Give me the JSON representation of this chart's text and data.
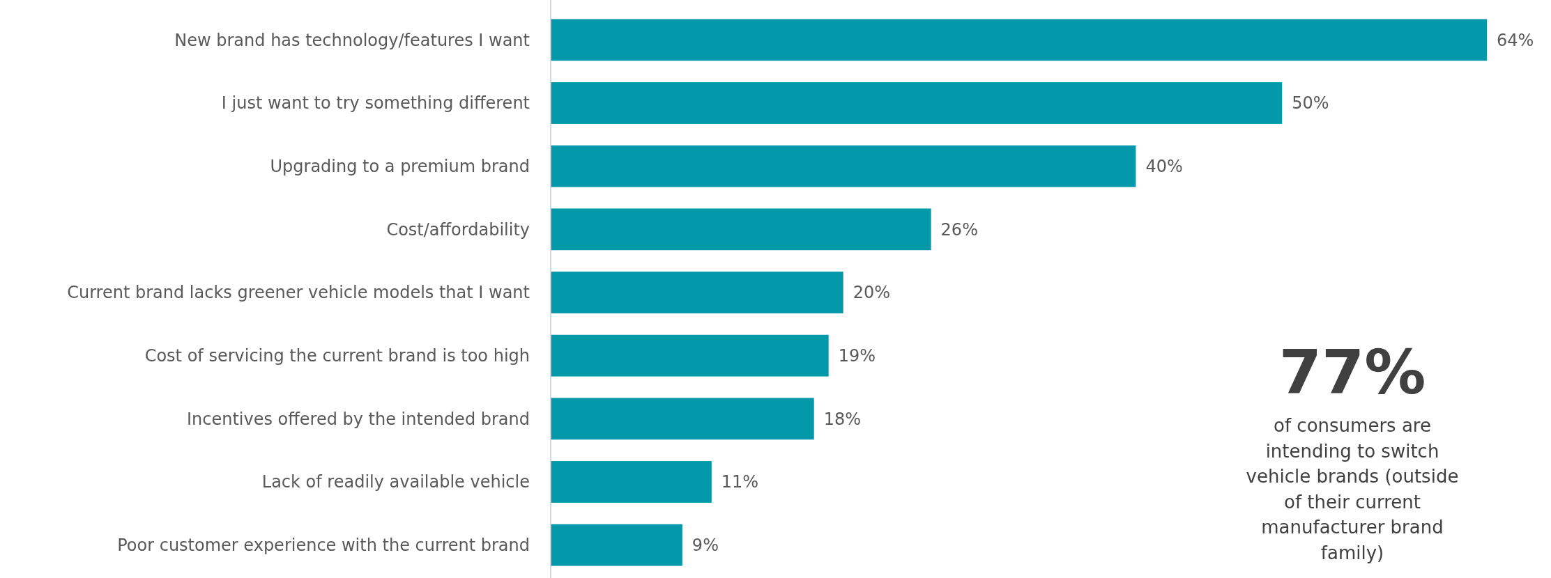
{
  "chart_data": {
    "type": "bar",
    "orientation": "horizontal",
    "categories": [
      "New brand has technology/features I want",
      "I just want to try something different",
      "Upgrading to a premium brand",
      "Cost/affordability",
      "Current brand lacks greener vehicle models that I want",
      "Cost of servicing the current brand is too high",
      "Incentives offered by the intended brand",
      "Lack of readily available vehicle",
      "Poor customer experience with the current brand"
    ],
    "values": [
      64,
      50,
      40,
      26,
      20,
      19,
      18,
      11,
      9
    ],
    "value_labels": [
      "64%",
      "50%",
      "40%",
      "26%",
      "20%",
      "19%",
      "18%",
      "11%",
      "9%"
    ],
    "color": "#0399ab",
    "annotations": [
      "77%",
      "of consumers are intending to switch vehicle brands (outside of their current manufacturer brand family)"
    ]
  }
}
